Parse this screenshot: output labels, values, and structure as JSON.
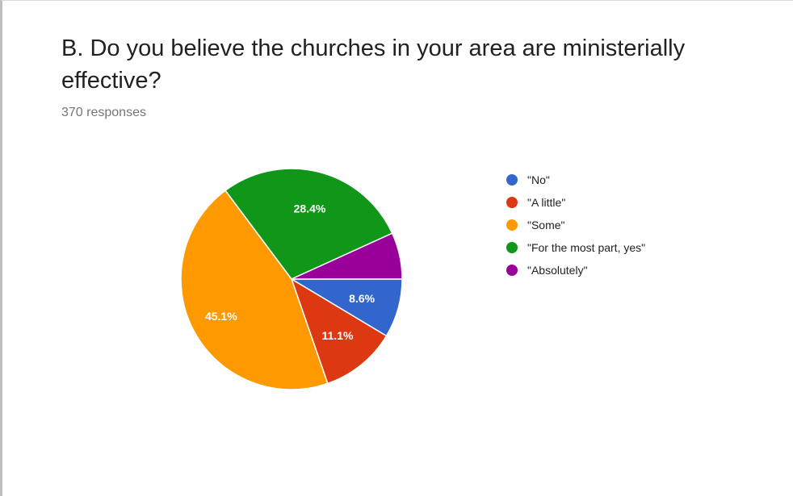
{
  "question": {
    "title": "B. Do you believe the churches in your area are ministerially effective?",
    "responses": "370 responses"
  },
  "chart_data": {
    "type": "pie",
    "title": "B. Do you believe the churches in your area are ministerially effective?",
    "legend_position": "right",
    "slices": [
      {
        "label": "\"No\"",
        "value": 8.6,
        "display": "8.6%",
        "color": "#3366cc"
      },
      {
        "label": "\"A little\"",
        "value": 11.1,
        "display": "11.1%",
        "color": "#dc3912"
      },
      {
        "label": "\"Some\"",
        "value": 45.1,
        "display": "45.1%",
        "color": "#ff9900"
      },
      {
        "label": "\"For the most part, yes\"",
        "value": 28.4,
        "display": "28.4%",
        "color": "#109618"
      },
      {
        "label": "\"Absolutely\"",
        "value": 6.8,
        "display": "",
        "color": "#990099"
      }
    ]
  }
}
